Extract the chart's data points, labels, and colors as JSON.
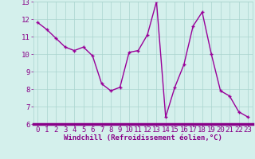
{
  "x": [
    0,
    1,
    2,
    3,
    4,
    5,
    6,
    7,
    8,
    9,
    10,
    11,
    12,
    13,
    14,
    15,
    16,
    17,
    18,
    19,
    20,
    21,
    22,
    23
  ],
  "y": [
    11.8,
    11.4,
    10.9,
    10.4,
    10.2,
    10.4,
    9.9,
    8.3,
    7.9,
    8.1,
    10.1,
    10.2,
    11.1,
    13.0,
    6.4,
    8.1,
    9.4,
    11.6,
    12.4,
    10.0,
    7.9,
    7.6,
    6.7,
    6.4
  ],
  "line_color": "#990099",
  "marker": "+",
  "marker_size": 3,
  "marker_lw": 1.0,
  "line_width": 1.0,
  "bg_color": "#d4f0ec",
  "grid_color": "#aad4ce",
  "axis_bar_color": "#880088",
  "xlabel": "Windchill (Refroidissement éolien,°C)",
  "xlabel_color": "#880088",
  "tick_color": "#880088",
  "ylim": [
    6,
    13
  ],
  "xlim": [
    -0.5,
    23.5
  ],
  "yticks": [
    6,
    7,
    8,
    9,
    10,
    11,
    12,
    13
  ],
  "xticks": [
    0,
    1,
    2,
    3,
    4,
    5,
    6,
    7,
    8,
    9,
    10,
    11,
    12,
    13,
    14,
    15,
    16,
    17,
    18,
    19,
    20,
    21,
    22,
    23
  ],
  "tick_fontsize": 6.5,
  "xlabel_fontsize": 6.5
}
